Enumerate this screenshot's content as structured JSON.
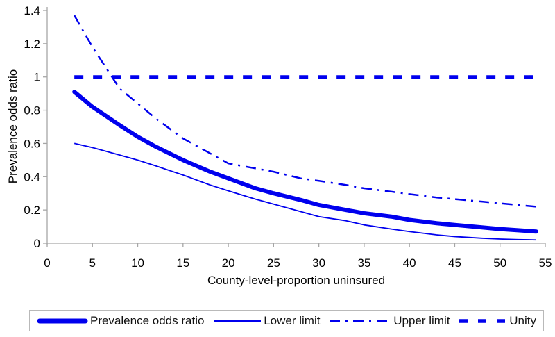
{
  "colors": {
    "series_blue": "#0000ee",
    "axis_gray": "#a6a6a6",
    "text_black": "#000000",
    "legend_border": "#b9b9b9"
  },
  "chart_data": {
    "type": "line",
    "title": "",
    "xlabel": "County-level-proportion uninsured",
    "ylabel": "Prevalence odds ratio",
    "xlim": [
      0,
      55
    ],
    "ylim": [
      0,
      1.4
    ],
    "grid": false,
    "legend_position": "bottom",
    "x_ticks": [
      {
        "v": 0,
        "label": "0"
      },
      {
        "v": 5,
        "label": "5"
      },
      {
        "v": 10,
        "label": "10"
      },
      {
        "v": 15,
        "label": "15"
      },
      {
        "v": 20,
        "label": "20"
      },
      {
        "v": 25,
        "label": "25"
      },
      {
        "v": 30,
        "label": "30"
      },
      {
        "v": 35,
        "label": "35"
      },
      {
        "v": 40,
        "label": "40"
      },
      {
        "v": 45,
        "label": "45"
      },
      {
        "v": 50,
        "label": "50"
      },
      {
        "v": 55,
        "label": "55"
      }
    ],
    "y_ticks": [
      {
        "v": 0,
        "label": "0"
      },
      {
        "v": 0.2,
        "label": "0.2"
      },
      {
        "v": 0.4,
        "label": "0.4"
      },
      {
        "v": 0.6,
        "label": "0.6"
      },
      {
        "v": 0.8,
        "label": "0.8"
      },
      {
        "v": 1,
        "label": "1"
      },
      {
        "v": 1.2,
        "label": "1.2"
      },
      {
        "v": 1.4,
        "label": "1.4"
      }
    ],
    "series": [
      {
        "name": "Prevalence odds ratio",
        "style": "thick-solid",
        "points": [
          [
            3,
            0.91
          ],
          [
            5,
            0.82
          ],
          [
            8,
            0.71
          ],
          [
            10,
            0.64
          ],
          [
            12,
            0.58
          ],
          [
            15,
            0.5
          ],
          [
            18,
            0.43
          ],
          [
            20,
            0.39
          ],
          [
            23,
            0.33
          ],
          [
            25,
            0.3
          ],
          [
            28,
            0.26
          ],
          [
            30,
            0.23
          ],
          [
            33,
            0.2
          ],
          [
            35,
            0.18
          ],
          [
            38,
            0.16
          ],
          [
            40,
            0.14
          ],
          [
            43,
            0.12
          ],
          [
            45,
            0.11
          ],
          [
            48,
            0.095
          ],
          [
            50,
            0.085
          ],
          [
            52,
            0.078
          ],
          [
            54,
            0.07
          ]
        ]
      },
      {
        "name": "Lower limit",
        "style": "thin-solid",
        "points": [
          [
            3,
            0.6
          ],
          [
            5,
            0.575
          ],
          [
            8,
            0.53
          ],
          [
            10,
            0.5
          ],
          [
            12,
            0.465
          ],
          [
            15,
            0.41
          ],
          [
            18,
            0.35
          ],
          [
            20,
            0.315
          ],
          [
            23,
            0.265
          ],
          [
            25,
            0.235
          ],
          [
            28,
            0.19
          ],
          [
            30,
            0.16
          ],
          [
            33,
            0.135
          ],
          [
            35,
            0.11
          ],
          [
            38,
            0.085
          ],
          [
            40,
            0.07
          ],
          [
            43,
            0.05
          ],
          [
            45,
            0.04
          ],
          [
            48,
            0.03
          ],
          [
            50,
            0.025
          ],
          [
            52,
            0.022
          ],
          [
            54,
            0.02
          ]
        ]
      },
      {
        "name": "Upper limit",
        "style": "dash-dot",
        "points": [
          [
            3,
            1.37
          ],
          [
            5,
            1.18
          ],
          [
            8,
            0.93
          ],
          [
            10,
            0.84
          ],
          [
            12,
            0.75
          ],
          [
            15,
            0.63
          ],
          [
            18,
            0.54
          ],
          [
            20,
            0.48
          ],
          [
            23,
            0.45
          ],
          [
            25,
            0.43
          ],
          [
            28,
            0.39
          ],
          [
            30,
            0.375
          ],
          [
            33,
            0.35
          ],
          [
            35,
            0.33
          ],
          [
            38,
            0.31
          ],
          [
            40,
            0.295
          ],
          [
            43,
            0.275
          ],
          [
            45,
            0.265
          ],
          [
            48,
            0.25
          ],
          [
            50,
            0.24
          ],
          [
            52,
            0.23
          ],
          [
            54,
            0.22
          ]
        ]
      },
      {
        "name": "Unity",
        "style": "thick-dash",
        "points": [
          [
            3,
            1.0
          ],
          [
            54,
            1.0
          ]
        ]
      }
    ]
  }
}
